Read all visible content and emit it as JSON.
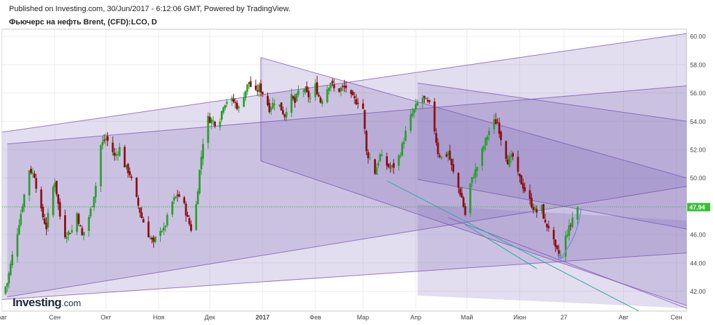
{
  "header": {
    "published": "Published on Investing.com, 30/Jun/2017 - 6:12:06 GMT, Powered by TradingView.",
    "title": "Фьючерс на нефть Brent, (CFD):LCO, D"
  },
  "logo": {
    "main": "Investing",
    "suffix": ".com"
  },
  "colors": {
    "up": "#2e9e2e",
    "down": "#8b1010",
    "channel_fill": "#7a62b6",
    "channel_line": "#7b4fb0",
    "current_line": "#36c036",
    "trend_line": "#2fa7a0",
    "arrow": "#7b8fd8"
  },
  "chart_data": {
    "type": "candlestick",
    "title": "Фьючерс на нефть Brent, (CFD):LCO, D",
    "ylim": [
      40.6,
      60.5
    ],
    "y_ticks": [
      "42.00",
      "44.00",
      "46.00",
      "48.00",
      "50.00",
      "52.00",
      "54.00",
      "56.00",
      "58.00",
      "60.00"
    ],
    "y_tick_values": [
      42,
      44,
      46,
      48,
      50,
      52,
      54,
      56,
      58,
      60
    ],
    "x_ticks": [
      "Авг",
      "Сен",
      "Окт",
      "Ноя",
      "Дек",
      "2017",
      "Фев",
      "Мар",
      "Апр",
      "Май",
      "Июн",
      "27",
      "Авг",
      "Сен"
    ],
    "x_tick_days": [
      0,
      31,
      61,
      92,
      122,
      153,
      184,
      212,
      243,
      273,
      304,
      330,
      365,
      396
    ],
    "x_axis_start": "2016-07-29",
    "current_price": 47.94,
    "close_path": [
      [
        0,
        41.8
      ],
      [
        3,
        42.6
      ],
      [
        6,
        44.5
      ],
      [
        9,
        46.2
      ],
      [
        13,
        48.8
      ],
      [
        16,
        50.6
      ],
      [
        19,
        50.2
      ],
      [
        22,
        48.0
      ],
      [
        26,
        46.5
      ],
      [
        29,
        48.9
      ],
      [
        31,
        49.8
      ],
      [
        34,
        47.3
      ],
      [
        37,
        46.0
      ],
      [
        41,
        46.3
      ],
      [
        44,
        47.5
      ],
      [
        47,
        45.9
      ],
      [
        50,
        46.8
      ],
      [
        53,
        48.2
      ],
      [
        56,
        50.1
      ],
      [
        58,
        52.3
      ],
      [
        61,
        52.8
      ],
      [
        64,
        52.2
      ],
      [
        66,
        51.5
      ],
      [
        69,
        52.1
      ],
      [
        72,
        50.9
      ],
      [
        75,
        50.3
      ],
      [
        78,
        48.9
      ],
      [
        82,
        47.2
      ],
      [
        86,
        46.0
      ],
      [
        89,
        45.3
      ],
      [
        92,
        46.5
      ],
      [
        95,
        46.3
      ],
      [
        98,
        47.6
      ],
      [
        100,
        48.3
      ],
      [
        103,
        48.8
      ],
      [
        106,
        48.5
      ],
      [
        109,
        47.1
      ],
      [
        111,
        46.4
      ],
      [
        113,
        46.9
      ],
      [
        116,
        50.5
      ],
      [
        119,
        53.6
      ],
      [
        121,
        54.2
      ],
      [
        124,
        54.0
      ],
      [
        127,
        53.7
      ],
      [
        130,
        55.2
      ],
      [
        133,
        55.6
      ],
      [
        136,
        55.4
      ],
      [
        139,
        54.9
      ],
      [
        142,
        55.9
      ],
      [
        145,
        56.8
      ],
      [
        148,
        55.8
      ],
      [
        151,
        56.4
      ],
      [
        154,
        55.8
      ],
      [
        157,
        54.9
      ],
      [
        160,
        55.4
      ],
      [
        163,
        55.1
      ],
      [
        166,
        54.4
      ],
      [
        169,
        55.9
      ],
      [
        172,
        55.3
      ],
      [
        175,
        56.5
      ],
      [
        178,
        56.1
      ],
      [
        181,
        55.6
      ],
      [
        184,
        56.5
      ],
      [
        187,
        55.4
      ],
      [
        190,
        56.1
      ],
      [
        193,
        56.8
      ],
      [
        196,
        56.0
      ],
      [
        199,
        56.3
      ],
      [
        202,
        56.4
      ],
      [
        205,
        55.7
      ],
      [
        208,
        55.4
      ],
      [
        211,
        55.5
      ],
      [
        212,
        54.9
      ],
      [
        214,
        51.8
      ],
      [
        217,
        51.2
      ],
      [
        219,
        50.4
      ],
      [
        222,
        51.6
      ],
      [
        225,
        51.0
      ],
      [
        228,
        50.7
      ],
      [
        231,
        50.9
      ],
      [
        234,
        51.8
      ],
      [
        237,
        53.2
      ],
      [
        240,
        54.3
      ],
      [
        243,
        55.0
      ],
      [
        246,
        55.8
      ],
      [
        249,
        55.4
      ],
      [
        252,
        55.0
      ],
      [
        254,
        53.4
      ],
      [
        256,
        51.8
      ],
      [
        259,
        51.3
      ],
      [
        262,
        51.8
      ],
      [
        264,
        50.8
      ],
      [
        266,
        49.9
      ],
      [
        268,
        49.3
      ],
      [
        270,
        48.6
      ],
      [
        272,
        47.4
      ],
      [
        273,
        48.8
      ],
      [
        276,
        49.9
      ],
      [
        279,
        50.8
      ],
      [
        282,
        51.9
      ],
      [
        285,
        53.0
      ],
      [
        288,
        54.0
      ],
      [
        291,
        53.9
      ],
      [
        294,
        52.3
      ],
      [
        297,
        51.2
      ],
      [
        300,
        51.5
      ],
      [
        303,
        50.2
      ],
      [
        306,
        49.4
      ],
      [
        309,
        48.6
      ],
      [
        312,
        47.9
      ],
      [
        314,
        47.6
      ],
      [
        317,
        47.9
      ],
      [
        319,
        46.7
      ],
      [
        322,
        46.5
      ],
      [
        325,
        44.9
      ],
      [
        328,
        44.5
      ],
      [
        330,
        45.4
      ],
      [
        332,
        46.2
      ],
      [
        334,
        46.7
      ],
      [
        336,
        47.7
      ],
      [
        338,
        47.94
      ]
    ],
    "x_lim_days": [
      0,
      402
    ],
    "channels": [
      {
        "points": [
          [
            -2,
            53.2
          ],
          [
            402,
            60.2
          ],
          [
            402,
            44.7
          ],
          [
            -2,
            41.4
          ]
        ]
      },
      {
        "points": [
          [
            3,
            52.4
          ],
          [
            402,
            56.5
          ],
          [
            402,
            49.4
          ],
          [
            3,
            41.6
          ]
        ]
      },
      {
        "points": [
          [
            152,
            58.5
          ],
          [
            402,
            50.0
          ],
          [
            402,
            41.0
          ],
          [
            152,
            51.2
          ]
        ]
      },
      {
        "points": [
          [
            244,
            56.7
          ],
          [
            402,
            54.0
          ],
          [
            402,
            46.4
          ],
          [
            244,
            49.9
          ]
        ]
      },
      {
        "points": [
          [
            244,
            48.1
          ],
          [
            402,
            47.0
          ],
          [
            402,
            40.8
          ],
          [
            244,
            41.7
          ]
        ]
      }
    ],
    "channel_lines": [
      [
        [
          -2,
          53.2
        ],
        [
          402,
          60.2
        ]
      ],
      [
        [
          -2,
          41.4
        ],
        [
          402,
          44.7
        ]
      ],
      [
        [
          3,
          52.4
        ],
        [
          402,
          56.5
        ]
      ],
      [
        [
          3,
          41.6
        ],
        [
          402,
          49.4
        ]
      ],
      [
        [
          152,
          58.5
        ],
        [
          402,
          50.0
        ]
      ],
      [
        [
          152,
          51.2
        ],
        [
          402,
          41.0
        ]
      ],
      [
        [
          244,
          56.7
        ],
        [
          402,
          54.0
        ]
      ],
      [
        [
          244,
          49.9
        ],
        [
          402,
          46.4
        ]
      ],
      [
        [
          262,
          47.2
        ],
        [
          402,
          40.8
        ]
      ],
      [
        [
          152,
          58.5
        ],
        [
          152,
          51.2
        ]
      ]
    ],
    "trend_lines": [
      [
        [
          226,
          49.8
        ],
        [
          374,
          40.6
        ]
      ],
      [
        [
          272,
          46.7
        ],
        [
          314,
          43.6
        ]
      ]
    ],
    "arrow": [
      [
        340,
        47.9
      ],
      [
        328,
        44.3
      ]
    ]
  }
}
